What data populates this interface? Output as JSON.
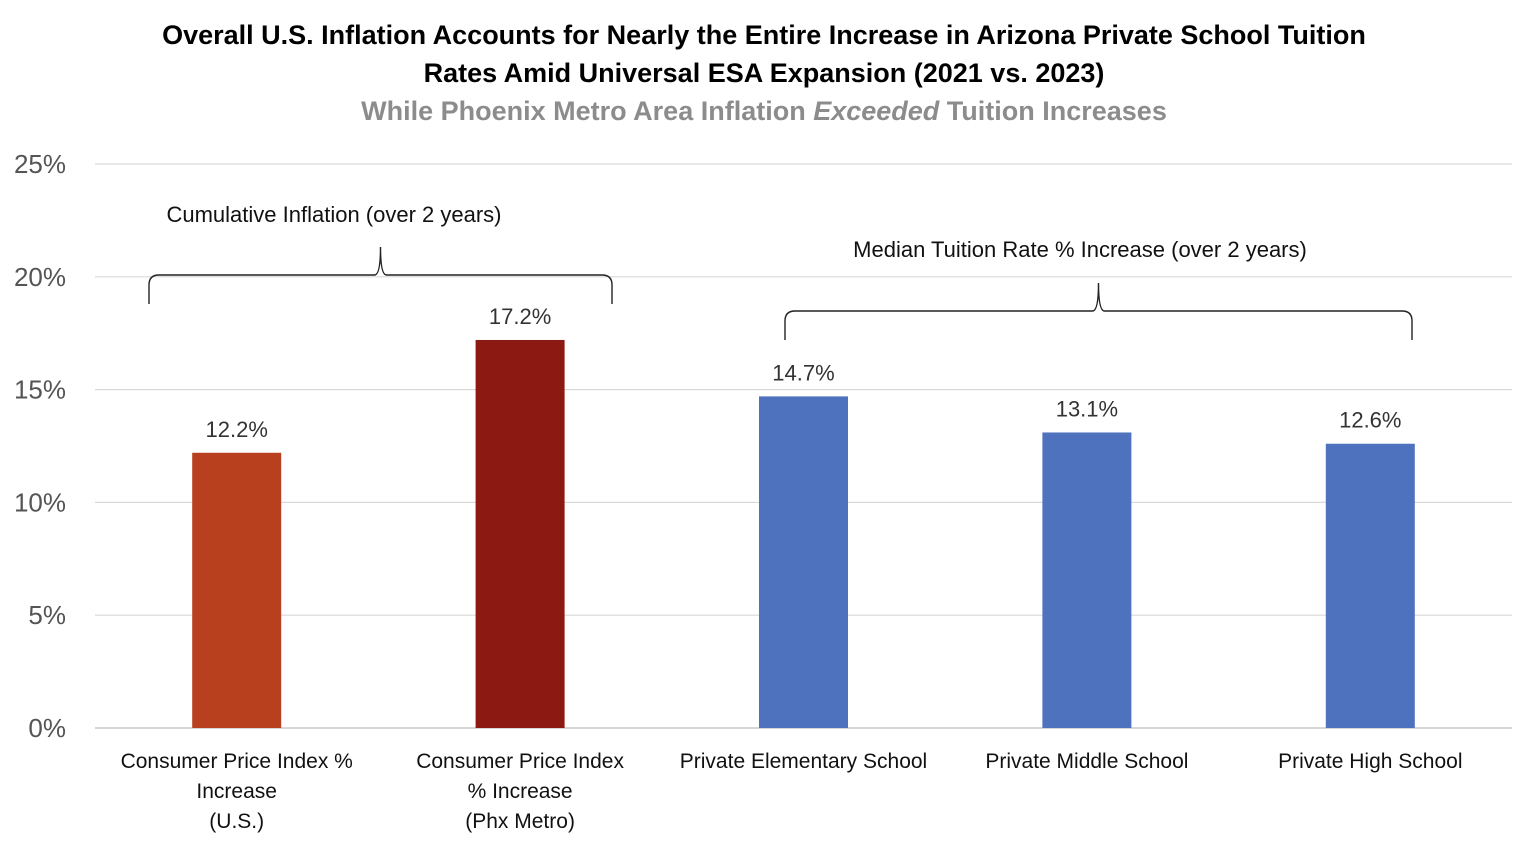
{
  "chart_data": {
    "type": "bar",
    "title": "Overall U.S. Inflation Accounts for Nearly the Entire Increase in Arizona Private School Tuition Rates Amid Universal ESA Expansion (2021 vs. 2023)",
    "title_lines": [
      "Overall U.S. Inflation Accounts for Nearly the Entire Increase in Arizona Private School Tuition",
      "Rates Amid Universal ESA Expansion (2021 vs. 2023)"
    ],
    "subtitle": {
      "before": "While Phoenix Metro Area Inflation ",
      "emphasis": "Exceeded",
      "after": " Tuition Increases"
    },
    "categories": [
      [
        "Consumer Price Index %",
        "Increase",
        "(U.S.)"
      ],
      [
        "Consumer Price Index",
        "% Increase",
        "(Phx Metro)"
      ],
      [
        "Private Elementary School"
      ],
      [
        "Private Middle School"
      ],
      [
        "Private High School"
      ]
    ],
    "values": [
      12.2,
      17.2,
      14.7,
      13.1,
      12.6
    ],
    "value_labels": [
      "12.2%",
      "17.2%",
      "14.7%",
      "13.1%",
      "12.6%"
    ],
    "bar_colors": [
      "#b9401e",
      "#8c1a12",
      "#4f72be",
      "#4f72be",
      "#4f72be"
    ],
    "ylim": [
      0,
      25
    ],
    "yticks": [
      0,
      5,
      10,
      15,
      20,
      25
    ],
    "ytick_labels": [
      "0%",
      "5%",
      "10%",
      "15%",
      "20%",
      "25%"
    ],
    "grid": true,
    "gridline_color": "#d9d9d9",
    "groups": [
      {
        "label": "Cumulative Inflation (over 2 years)",
        "bars": [
          0,
          1
        ]
      },
      {
        "label": "Median Tuition Rate % Increase (over 2 years)",
        "bars": [
          2,
          3,
          4
        ]
      }
    ]
  }
}
